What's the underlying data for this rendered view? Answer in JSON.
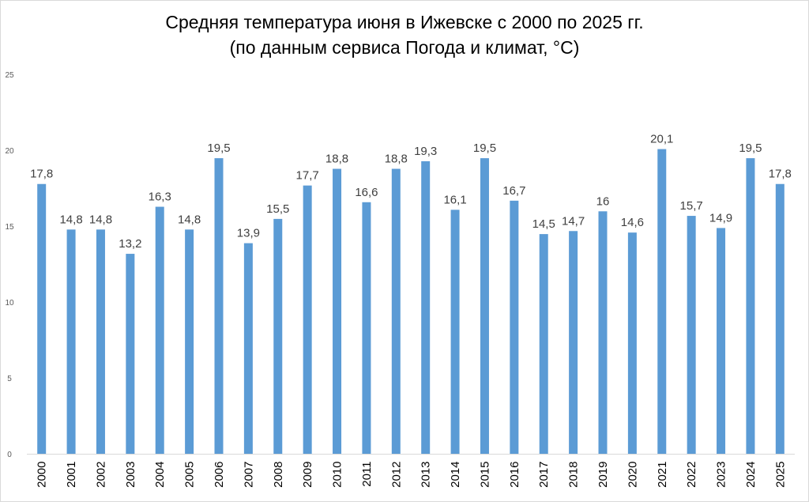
{
  "chart_data": {
    "type": "bar",
    "title": "Средняя температура июня в Ижевске с 2000 по 2025 гг.",
    "subtitle": "(по данным сервиса Погода и климат, °С)",
    "xlabel": "",
    "ylabel": "",
    "ylim": [
      0,
      25
    ],
    "yticks": [
      "0",
      "5",
      "10",
      "15",
      "20",
      "25"
    ],
    "grid": false,
    "legend": "none",
    "bar_color": "#5b9bd5",
    "categories": [
      "2000",
      "2001",
      "2002",
      "2003",
      "2004",
      "2005",
      "2006",
      "2007",
      "2008",
      "2009",
      "2010",
      "2011",
      "2012",
      "2013",
      "2014",
      "2015",
      "2016",
      "2017",
      "2018",
      "2019",
      "2020",
      "2021",
      "2022",
      "2023",
      "2024",
      "2025"
    ],
    "values": [
      17.8,
      14.8,
      14.8,
      13.2,
      16.3,
      14.8,
      19.5,
      13.9,
      15.5,
      17.7,
      18.8,
      16.6,
      18.8,
      19.3,
      16.1,
      19.5,
      16.7,
      14.5,
      14.7,
      16,
      14.6,
      20.1,
      15.7,
      14.9,
      19.5,
      17.8
    ],
    "value_labels": [
      "17,8",
      "14,8",
      "14,8",
      "13,2",
      "16,3",
      "14,8",
      "19,5",
      "13,9",
      "15,5",
      "17,7",
      "18,8",
      "16,6",
      "18,8",
      "19,3",
      "16,1",
      "19,5",
      "16,7",
      "14,5",
      "14,7",
      "16",
      "14,6",
      "20,1",
      "15,7",
      "14,9",
      "19,5",
      "17,8"
    ]
  }
}
